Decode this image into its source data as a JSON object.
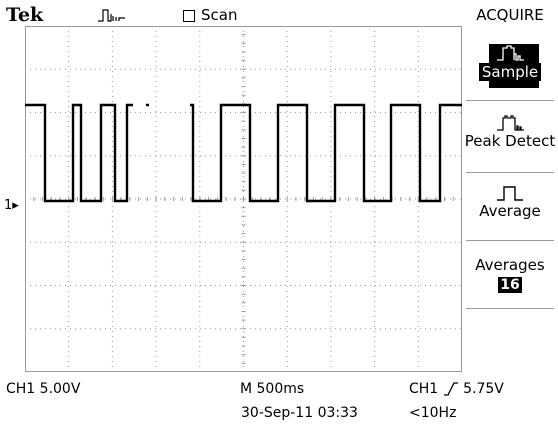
{
  "header": {
    "brand": "Tek",
    "scan_label": "Scan",
    "trig_icon": "pulse-trigger-status-icon",
    "scan_icon": "checkbox-icon"
  },
  "menu": {
    "title": "ACQUIRE",
    "items": [
      {
        "label": "Sample",
        "icon": "sample-waveform-icon",
        "selected": true
      },
      {
        "label": "Peak Detect",
        "icon": "peak-detect-waveform-icon",
        "selected": false
      },
      {
        "label": "Average",
        "icon": "average-square-pulse-icon",
        "selected": false
      },
      {
        "label": "Averages",
        "value": "16",
        "selected": false
      }
    ]
  },
  "status": {
    "ch1_scale": "CH1  5.00V",
    "timebase": "M 500ms",
    "datetime": "30-Sep-11 03:33",
    "trigger_source": "CH1",
    "trigger_level": "5.75V",
    "frequency": "<10Hz",
    "ch1_marker": "1"
  },
  "display": {
    "grid_divisions_x": 10,
    "grid_divisions_y": 8,
    "trace_color": "#000000",
    "grid_color": "#9a9a9a"
  }
}
